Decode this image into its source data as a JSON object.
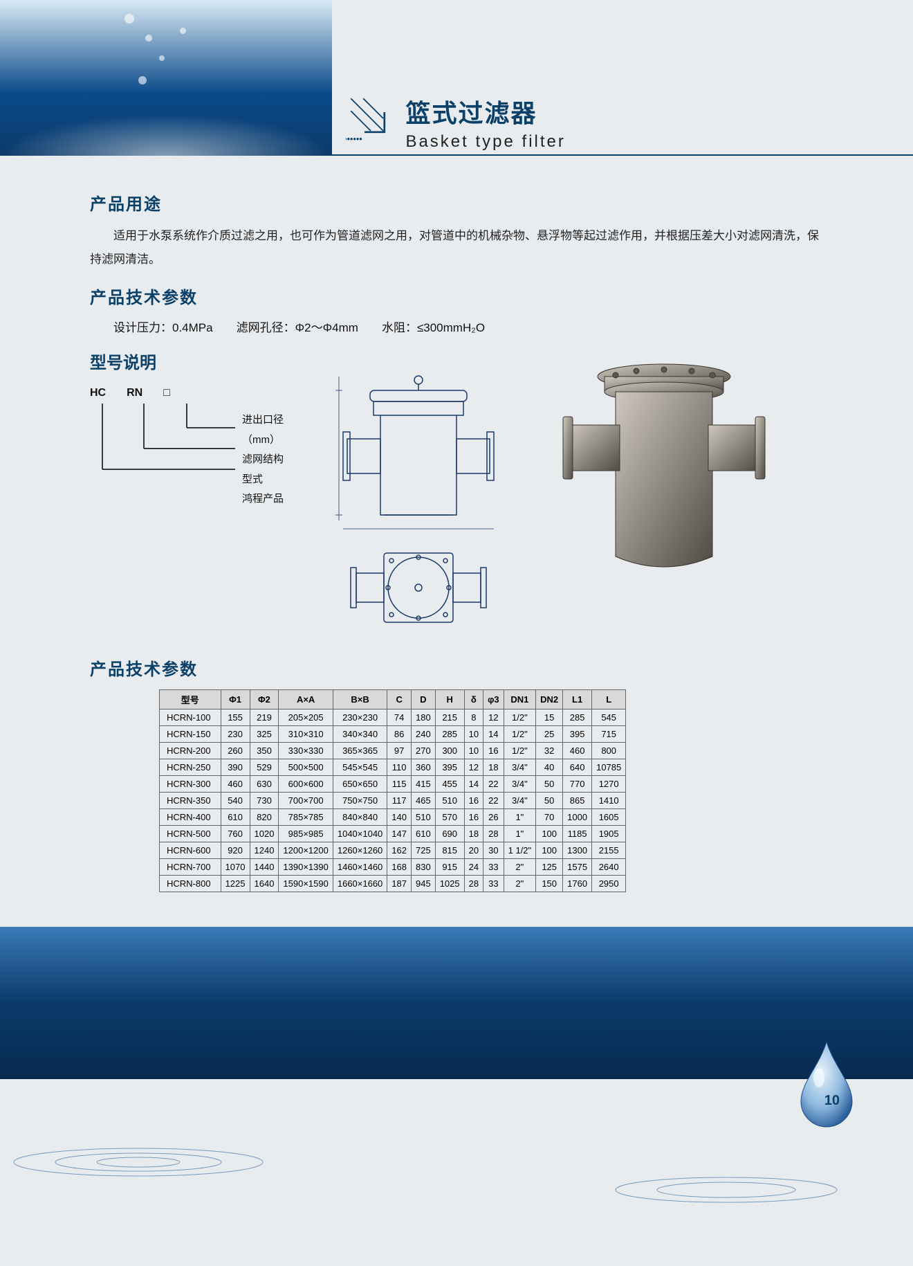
{
  "title": {
    "cn": "篮式过滤器",
    "en": "Basket type filter"
  },
  "sections": {
    "usage_h": "产品用途",
    "usage_p": "适用于水泵系统作介质过滤之用，也可作为管道滤网之用，对管道中的机械杂物、悬浮物等起过滤作用，并根据压差大小对滤网清洗，保持滤网清洁。",
    "spec_h": "产品技术参数",
    "spec_line": "设计压力：0.4MPa　　滤网孔径：Φ2～Φ4mm　　水阻：≤300mmH₂O",
    "model_h": "型号说明",
    "model_code": [
      "HC",
      "RN",
      "□"
    ],
    "model_desc": [
      "进出口径（mm）",
      "滤网结构型式",
      "鸿程产品"
    ],
    "table_h": "产品技术参数"
  },
  "table": {
    "headers": [
      "型号",
      "Φ1",
      "Φ2",
      "A×A",
      "B×B",
      "C",
      "D",
      "H",
      "δ",
      "φ3",
      "DN1",
      "DN2",
      "L1",
      "L"
    ],
    "header_bg": "#d9d9d9",
    "rows": [
      [
        "HCRN-100",
        "155",
        "219",
        "205×205",
        "230×230",
        "74",
        "180",
        "215",
        "8",
        "12",
        "1/2\"",
        "15",
        "285",
        "545"
      ],
      [
        "HCRN-150",
        "230",
        "325",
        "310×310",
        "340×340",
        "86",
        "240",
        "285",
        "10",
        "14",
        "1/2\"",
        "25",
        "395",
        "715"
      ],
      [
        "HCRN-200",
        "260",
        "350",
        "330×330",
        "365×365",
        "97",
        "270",
        "300",
        "10",
        "16",
        "1/2\"",
        "32",
        "460",
        "800"
      ],
      [
        "HCRN-250",
        "390",
        "529",
        "500×500",
        "545×545",
        "110",
        "360",
        "395",
        "12",
        "18",
        "3/4\"",
        "40",
        "640",
        "10785"
      ],
      [
        "HCRN-300",
        "460",
        "630",
        "600×600",
        "650×650",
        "115",
        "415",
        "455",
        "14",
        "22",
        "3/4\"",
        "50",
        "770",
        "1270"
      ],
      [
        "HCRN-350",
        "540",
        "730",
        "700×700",
        "750×750",
        "117",
        "465",
        "510",
        "16",
        "22",
        "3/4\"",
        "50",
        "865",
        "1410"
      ],
      [
        "HCRN-400",
        "610",
        "820",
        "785×785",
        "840×840",
        "140",
        "510",
        "570",
        "16",
        "26",
        "1\"",
        "70",
        "1000",
        "1605"
      ],
      [
        "HCRN-500",
        "760",
        "1020",
        "985×985",
        "1040×1040",
        "147",
        "610",
        "690",
        "18",
        "28",
        "1\"",
        "100",
        "1185",
        "1905"
      ],
      [
        "HCRN-600",
        "920",
        "1240",
        "1200×1200",
        "1260×1260",
        "162",
        "725",
        "815",
        "20",
        "30",
        "1 1/2\"",
        "100",
        "1300",
        "2155"
      ],
      [
        "HCRN-700",
        "1070",
        "1440",
        "1390×1390",
        "1460×1460",
        "168",
        "830",
        "915",
        "24",
        "33",
        "2\"",
        "125",
        "1575",
        "2640"
      ],
      [
        "HCRN-800",
        "1225",
        "1640",
        "1590×1590",
        "1660×1660",
        "187",
        "945",
        "1025",
        "28",
        "33",
        "2\"",
        "150",
        "1760",
        "2950"
      ]
    ]
  },
  "page_number": "10",
  "colors": {
    "heading": "#0b4168",
    "band_top": "#3a7ab8",
    "band_mid": "#0b3a6a",
    "band_bot": "#072a50",
    "page_bg": "#e9ecef",
    "border": "#666666"
  }
}
